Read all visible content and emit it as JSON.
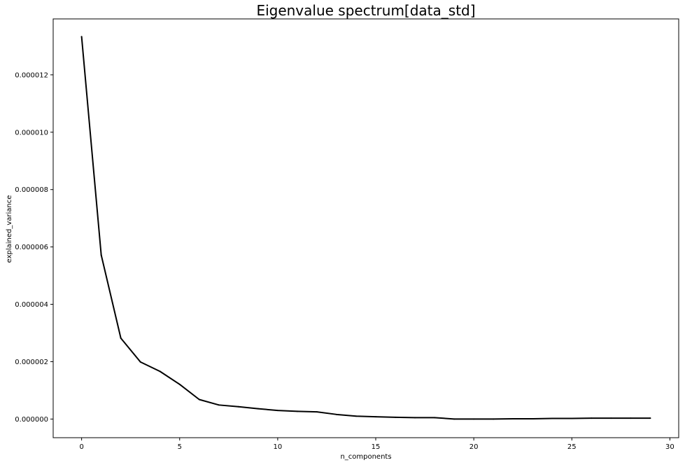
{
  "chart_data": {
    "type": "line",
    "title": "Eigenvalue spectrum[data_std]",
    "xlabel": "n_components",
    "ylabel": "explained_variance",
    "xlim": [
      -1.45,
      30.45
    ],
    "ylim": [
      -6.5e-07,
      1.395e-05
    ],
    "x_ticks": [
      0,
      5,
      10,
      15,
      20,
      25,
      30
    ],
    "x_tick_labels": [
      "0",
      "5",
      "10",
      "15",
      "20",
      "25",
      "30"
    ],
    "y_ticks": [
      0,
      2e-06,
      4e-06,
      6e-06,
      8e-06,
      1e-05,
      1.2e-05
    ],
    "y_tick_labels": [
      "0.000000",
      "0.000002",
      "0.000004",
      "0.000006",
      "0.000008",
      "0.000010",
      "0.000012"
    ],
    "grid": false,
    "series": [
      {
        "color": "#000000",
        "x": [
          0,
          1,
          2,
          3,
          4,
          5,
          6,
          7,
          8,
          9,
          10,
          11,
          12,
          13,
          14,
          15,
          16,
          17,
          18,
          19,
          20,
          21,
          22,
          23,
          24,
          25,
          26,
          27,
          28,
          29
        ],
        "values": [
          1.333e-05,
          5.72e-06,
          2.82e-06,
          1.99e-06,
          1.66e-06,
          1.21e-06,
          6.8e-07,
          4.9e-07,
          4.3e-07,
          3.6e-07,
          3e-07,
          2.7e-07,
          2.5e-07,
          1.6e-07,
          1e-07,
          8e-08,
          6e-08,
          5e-08,
          5e-08,
          0.0,
          0.0,
          0.0,
          1e-08,
          1e-08,
          2e-08,
          2e-08,
          3e-08,
          3e-08,
          3e-08,
          3e-08
        ]
      }
    ]
  }
}
